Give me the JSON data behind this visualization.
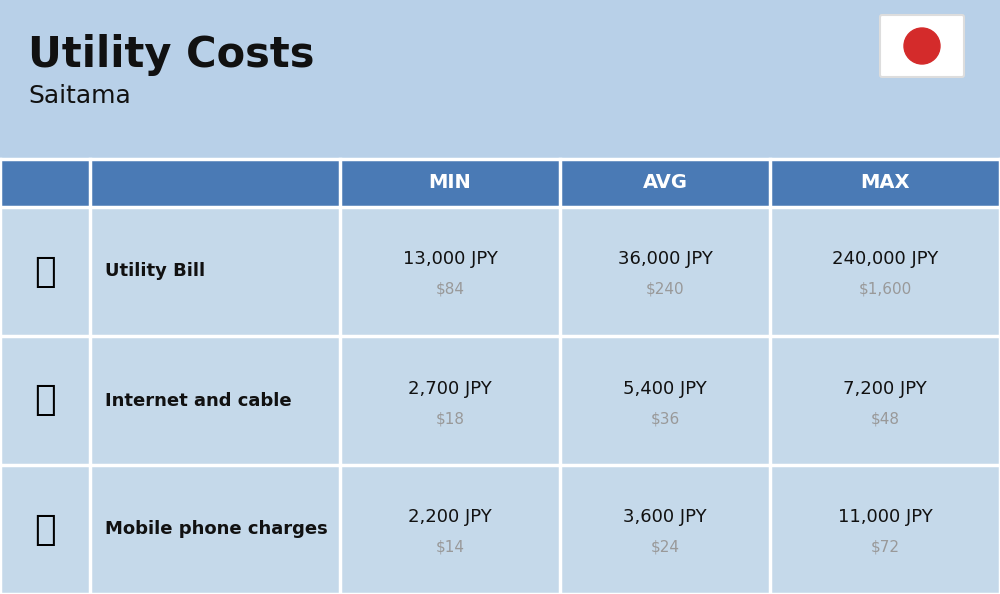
{
  "title": "Utility Costs",
  "subtitle": "Saitama",
  "background_color": "#b8d0e8",
  "header_bg_color": "#4a7ab5",
  "header_text_color": "#ffffff",
  "row_bg_color": "#c5d9ea",
  "table_border_color": "#ffffff",
  "label_text_color": "#111111",
  "value_text_color": "#111111",
  "usd_text_color": "#999999",
  "rows": [
    {
      "label": "Utility Bill",
      "min_jpy": "13,000 JPY",
      "min_usd": "$84",
      "avg_jpy": "36,000 JPY",
      "avg_usd": "$240",
      "max_jpy": "240,000 JPY",
      "max_usd": "$1,600"
    },
    {
      "label": "Internet and cable",
      "min_jpy": "2,700 JPY",
      "min_usd": "$18",
      "avg_jpy": "5,400 JPY",
      "avg_usd": "$36",
      "max_jpy": "7,200 JPY",
      "max_usd": "$48"
    },
    {
      "label": "Mobile phone charges",
      "min_jpy": "2,200 JPY",
      "min_usd": "$14",
      "avg_jpy": "3,600 JPY",
      "avg_usd": "$24",
      "max_jpy": "11,000 JPY",
      "max_usd": "$72"
    }
  ],
  "flag_bg": "#ffffff",
  "flag_circle_color": "#d42b2b",
  "title_fontsize": 30,
  "subtitle_fontsize": 18,
  "header_fontsize": 14,
  "label_fontsize": 13,
  "value_fontsize": 13,
  "usd_fontsize": 11,
  "fig_width": 10.0,
  "fig_height": 5.94,
  "dpi": 100
}
